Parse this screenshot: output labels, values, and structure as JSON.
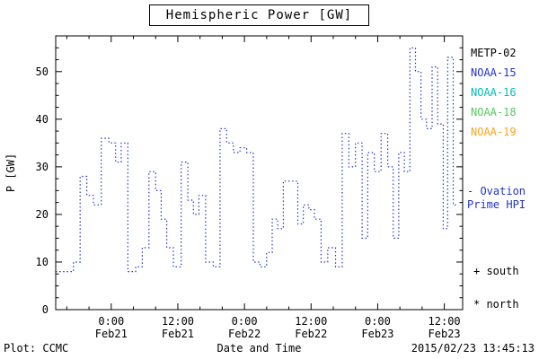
{
  "title": "Hemispheric Power [GW]",
  "legend": {
    "items": [
      {
        "label": "METP-02",
        "color": "#000000"
      },
      {
        "label": "NOAA-15",
        "color": "#2233cc"
      },
      {
        "label": "NOAA-16",
        "color": "#00bcbc"
      },
      {
        "label": "NOAA-18",
        "color": "#55c866"
      },
      {
        "label": "NOAA-19",
        "color": "#f5a623"
      }
    ]
  },
  "ovation": {
    "line1": "- Ovation",
    "line2": "Prime HPI",
    "color": "#2233cc"
  },
  "markers": {
    "south": "+ south",
    "north": "* north"
  },
  "footer": {
    "plot_credit": "Plot: CCMC",
    "xaxis_title": "Date and Time",
    "timestamp": "2015/02/23 13:45:13"
  },
  "chart_data": {
    "type": "line",
    "subtype": "dotted-step",
    "title": "Hemispheric Power [GW]",
    "xlabel": "Date and Time",
    "ylabel": "P [GW]",
    "ylim": [
      0,
      57.5
    ],
    "y_ticks": [
      0,
      10,
      20,
      30,
      40,
      50
    ],
    "x_domain_hours": [
      0,
      73.3
    ],
    "step_end_hour": 72.4,
    "x_ticks": [
      {
        "hour": 10,
        "time": "0:00",
        "date": "Feb21"
      },
      {
        "hour": 22,
        "time": "12:00",
        "date": "Feb21"
      },
      {
        "hour": 34,
        "time": "0:00",
        "date": "Feb22"
      },
      {
        "hour": 46,
        "time": "12:00",
        "date": "Feb22"
      },
      {
        "hour": 58,
        "time": "0:00",
        "date": "Feb23"
      },
      {
        "hour": 70,
        "time": "12:00",
        "date": "Feb23"
      }
    ],
    "grid": false,
    "legend_position": "right-outside",
    "series": [
      {
        "name": "NOAA-15 Hemispheric Power (Ovation Prime HPI)",
        "color": "#2233cc",
        "style": "dotted-step",
        "points_hour_value": [
          [
            0,
            8
          ],
          [
            1.6,
            8
          ],
          [
            3.2,
            10
          ],
          [
            4.4,
            28
          ],
          [
            5.6,
            24
          ],
          [
            6.8,
            22
          ],
          [
            8.2,
            36
          ],
          [
            9.6,
            35
          ],
          [
            10.8,
            31
          ],
          [
            11.8,
            35
          ],
          [
            13,
            8
          ],
          [
            14.4,
            9
          ],
          [
            15.6,
            13
          ],
          [
            16.8,
            29
          ],
          [
            18,
            25
          ],
          [
            19,
            19
          ],
          [
            20,
            13
          ],
          [
            21.2,
            9
          ],
          [
            22.6,
            31
          ],
          [
            23.8,
            23
          ],
          [
            24.8,
            20
          ],
          [
            25.8,
            24
          ],
          [
            27,
            10
          ],
          [
            28.4,
            9
          ],
          [
            29.6,
            38
          ],
          [
            30.8,
            35
          ],
          [
            32,
            33
          ],
          [
            33.2,
            34
          ],
          [
            34.4,
            33
          ],
          [
            35.6,
            10
          ],
          [
            36.8,
            9
          ],
          [
            38,
            12
          ],
          [
            39,
            19
          ],
          [
            40,
            17
          ],
          [
            41,
            27
          ],
          [
            42.4,
            27
          ],
          [
            43.6,
            18
          ],
          [
            44.6,
            22
          ],
          [
            45.6,
            21
          ],
          [
            46.6,
            19
          ],
          [
            47.8,
            10
          ],
          [
            49,
            13
          ],
          [
            50.4,
            9
          ],
          [
            51.6,
            37
          ],
          [
            52.8,
            30
          ],
          [
            54,
            35
          ],
          [
            55.2,
            15
          ],
          [
            56.2,
            33
          ],
          [
            57.4,
            29
          ],
          [
            58.6,
            37
          ],
          [
            59.8,
            30
          ],
          [
            60.8,
            15
          ],
          [
            61.8,
            33
          ],
          [
            62.8,
            29
          ],
          [
            63.8,
            55
          ],
          [
            64.8,
            50
          ],
          [
            65.8,
            40
          ],
          [
            66.8,
            38
          ],
          [
            67.8,
            51
          ],
          [
            68.8,
            39
          ],
          [
            69.8,
            17
          ],
          [
            70.6,
            53
          ],
          [
            71.6,
            22
          ]
        ]
      }
    ]
  }
}
